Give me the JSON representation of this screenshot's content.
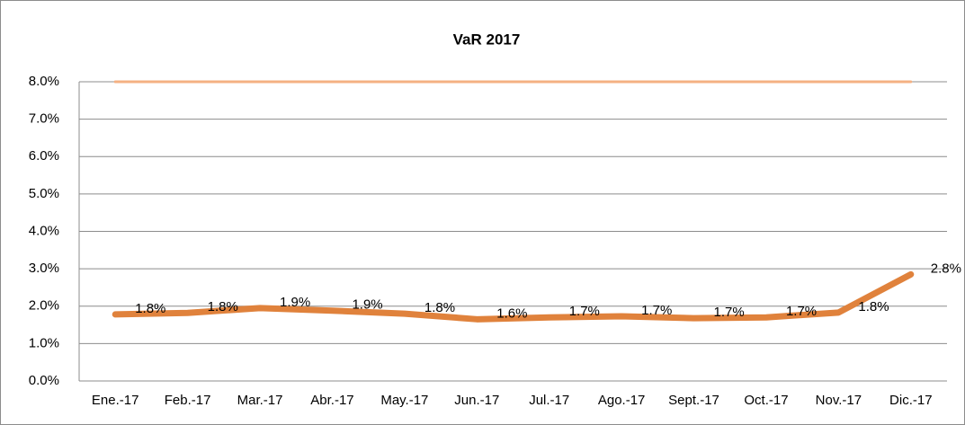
{
  "chart_data": {
    "type": "line",
    "title": "VaR 2017",
    "categories": [
      "Ene.-17",
      "Feb.-17",
      "Mar.-17",
      "Abr.-17",
      "May.-17",
      "Jun.-17",
      "Jul.-17",
      "Ago.-17",
      "Sept.-17",
      "Oct.-17",
      "Nov.-17",
      "Dic.-17"
    ],
    "series": [
      {
        "color": "#f4b183",
        "values": [
          8,
          8,
          8,
          8,
          8,
          8,
          8,
          8,
          8,
          8,
          8,
          8
        ]
      },
      {
        "color": "#e0823c",
        "values": [
          1.78,
          1.82,
          1.95,
          1.88,
          1.8,
          1.65,
          1.7,
          1.73,
          1.68,
          1.7,
          1.83,
          2.85
        ],
        "value_labels": [
          "1.8%",
          "1.8%",
          "1.9%",
          "1.9%",
          "1.8%",
          "1.6%",
          "1.7%",
          "1.7%",
          "1.7%",
          "1.7%",
          "1.8%",
          "2.8%"
        ]
      }
    ],
    "ylim": [
      0,
      8
    ],
    "yticks": [
      {
        "value": 0,
        "label": "0.0%"
      },
      {
        "value": 1,
        "label": "1.0%"
      },
      {
        "value": 2,
        "label": "2.0%"
      },
      {
        "value": 3,
        "label": "3.0%"
      },
      {
        "value": 4,
        "label": "4.0%"
      },
      {
        "value": 5,
        "label": "5.0%"
      },
      {
        "value": 6,
        "label": "6.0%"
      },
      {
        "value": 7,
        "label": "7.0%"
      },
      {
        "value": 8,
        "label": "8.0%"
      }
    ],
    "grid": true
  }
}
